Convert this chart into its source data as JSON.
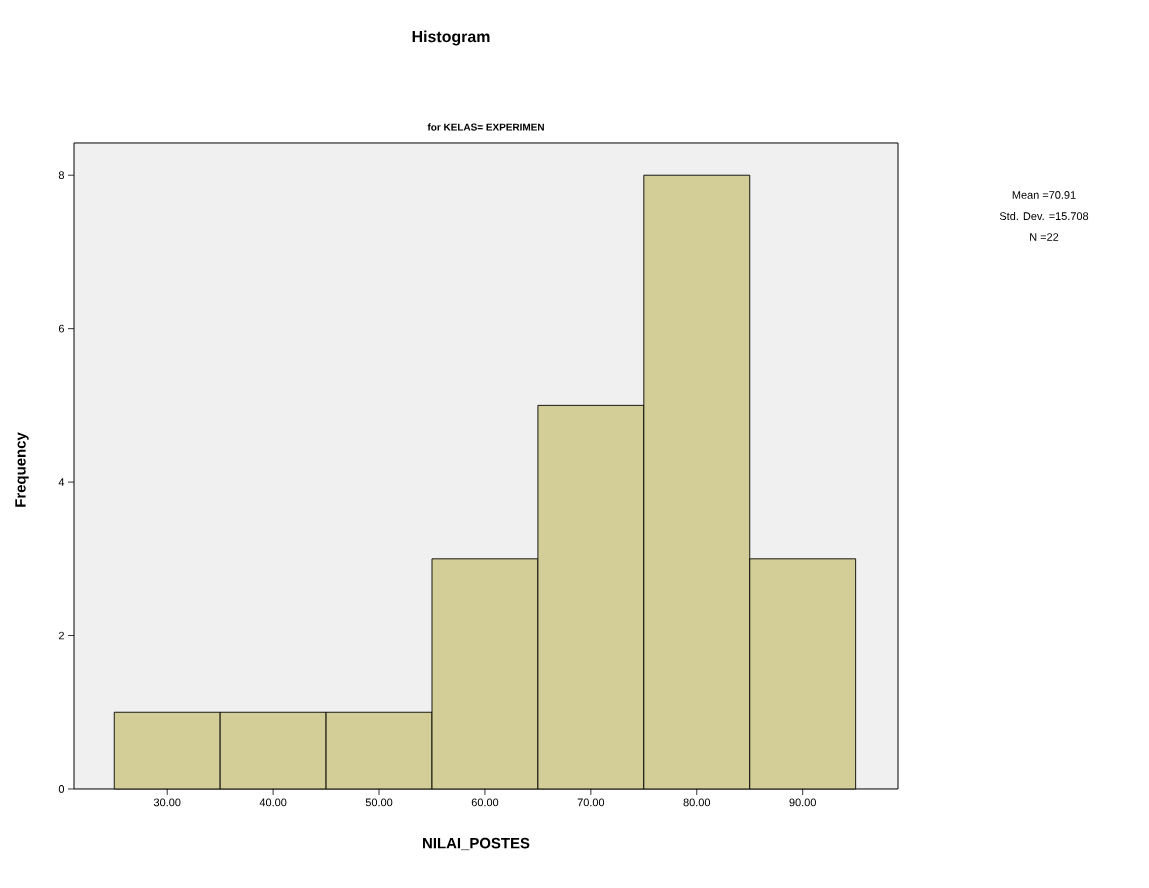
{
  "chart_data": {
    "type": "histogram",
    "title": "Histogram",
    "subtitle": "for KELAS= EXPERIMEN",
    "xlabel": "NILAI_POSTES",
    "ylabel": "Frequency",
    "bins": [
      25,
      35,
      45,
      55,
      65,
      75,
      85,
      95
    ],
    "values": [
      1,
      1,
      1,
      3,
      5,
      8,
      3
    ],
    "color": "#d3ce97",
    "xlim": [
      21.2,
      99
    ],
    "ylim": [
      0,
      8.42
    ],
    "xticks": [
      {
        "value": 30,
        "label": "30.00"
      },
      {
        "value": 40,
        "label": "40.00"
      },
      {
        "value": 50,
        "label": "50.00"
      },
      {
        "value": 60,
        "label": "60.00"
      },
      {
        "value": 70,
        "label": "70.00"
      },
      {
        "value": 80,
        "label": "80.00"
      },
      {
        "value": 90,
        "label": "90.00"
      }
    ],
    "yticks": [
      0,
      2,
      4,
      6,
      8
    ],
    "annotations": [
      "Mean =70.91",
      "Std. Dev. =15.708",
      "N =22"
    ]
  }
}
